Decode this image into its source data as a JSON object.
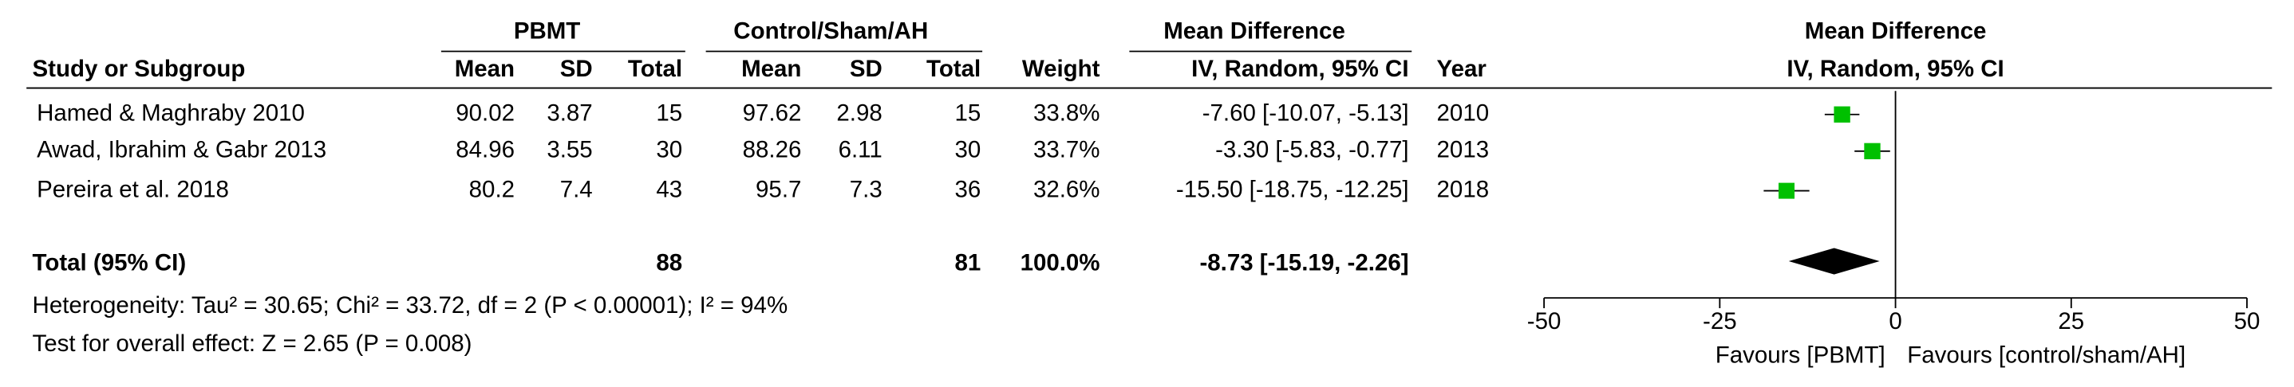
{
  "chart_data": {
    "type": "forest",
    "group_headers": {
      "experimental": "PBMT",
      "control": "Control/Sham/AH",
      "effect": "Mean Difference",
      "plot": "Mean Difference"
    },
    "columns": [
      "Study or Subgroup",
      "Mean",
      "SD",
      "Total",
      "Mean",
      "SD",
      "Total",
      "Weight",
      "IV, Random, 95% CI",
      "Year"
    ],
    "plot_subtitle": "IV, Random, 95% CI",
    "studies": [
      {
        "name": "Hamed & Maghraby 2010",
        "exp_mean": 90.02,
        "exp_sd": 3.87,
        "exp_total": 15,
        "ctrl_mean": 97.62,
        "ctrl_sd": 2.98,
        "ctrl_total": 15,
        "weight": 33.8,
        "weight_label": "33.8%",
        "md": -7.6,
        "ci": [
          -10.07,
          -5.13
        ],
        "md_label": "-7.60 [-10.07, -5.13]",
        "year": 2010
      },
      {
        "name": "Awad, Ibrahim & Gabr 2013",
        "exp_mean": 84.96,
        "exp_sd": 3.55,
        "exp_total": 30,
        "ctrl_mean": 88.26,
        "ctrl_sd": 6.11,
        "ctrl_total": 30,
        "weight": 33.7,
        "weight_label": "33.7%",
        "md": -3.3,
        "ci": [
          -5.83,
          -0.77
        ],
        "md_label": "-3.30 [-5.83, -0.77]",
        "year": 2013
      },
      {
        "name": "Pereira et al. 2018",
        "exp_mean": 80.2,
        "exp_sd": 7.4,
        "exp_total": 43,
        "ctrl_mean": 95.7,
        "ctrl_sd": 7.3,
        "ctrl_total": 36,
        "weight": 32.6,
        "weight_label": "32.6%",
        "md": -15.5,
        "ci": [
          -18.75,
          -12.25
        ],
        "md_label": "-15.50 [-18.75, -12.25]",
        "year": 2018
      }
    ],
    "total": {
      "name": "Total (95% CI)",
      "exp_total": 88,
      "ctrl_total": 81,
      "weight_label": "100.0%",
      "md": -8.73,
      "ci": [
        -15.19,
        -2.26
      ],
      "md_label": "-8.73 [-15.19, -2.26]"
    },
    "heterogeneity": "Heterogeneity: Tau² = 30.65; Chi² = 33.72, df = 2 (P < 0.00001); I² = 94%",
    "overall_effect": "Test for overall effect: Z = 2.65 (P = 0.008)",
    "xlim": [
      -50,
      50
    ],
    "xticks": [
      -50,
      -25,
      0,
      25,
      50
    ],
    "favours": [
      "Favours [PBMT]",
      "Favours [control/sham/AH]"
    ],
    "color": "#00c000",
    "diamond_color": "#000000"
  }
}
